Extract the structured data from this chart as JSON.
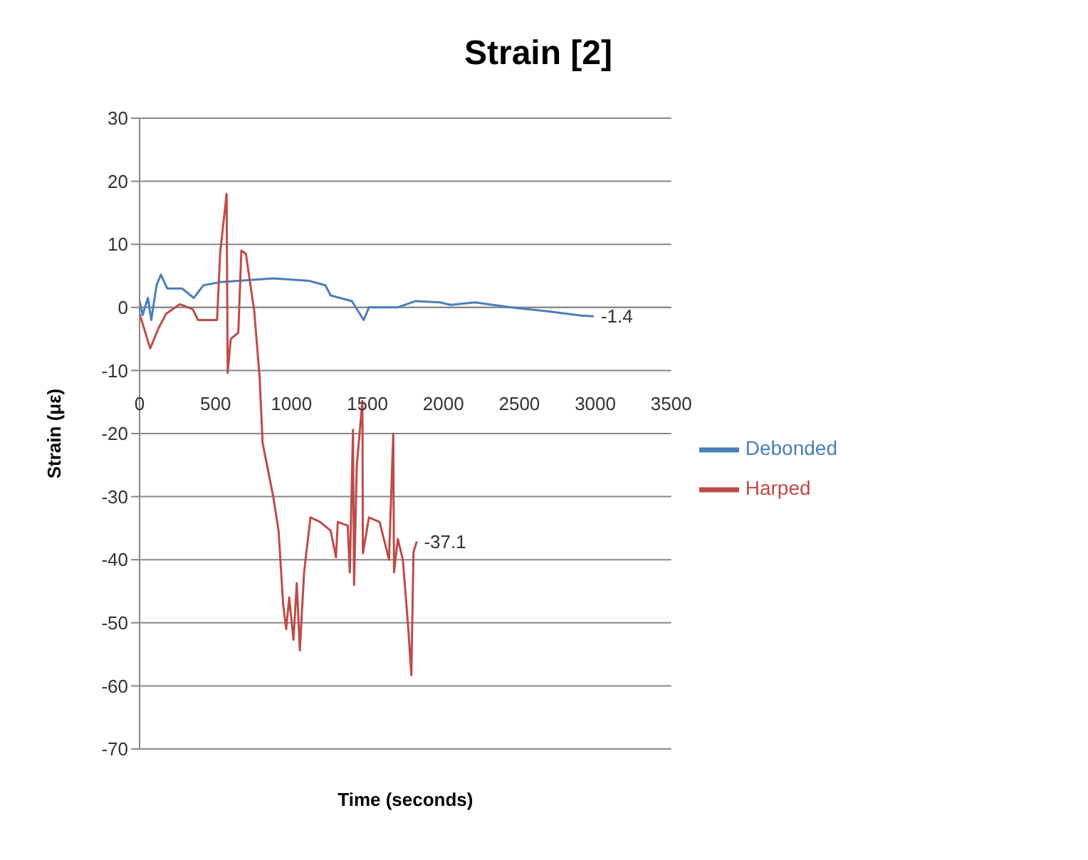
{
  "chart_data": {
    "type": "line",
    "title": "Strain [2]",
    "xlabel": "Time (seconds)",
    "ylabel": "Strain (με)",
    "xlim": [
      0,
      3500
    ],
    "xticks": [
      0,
      500,
      1000,
      1500,
      2000,
      2500,
      3000,
      3500
    ],
    "ylim": [
      -70,
      30
    ],
    "yticks": [
      -70,
      -60,
      -50,
      -40,
      -30,
      -20,
      -10,
      0,
      10,
      20,
      30
    ],
    "grid": "y",
    "legend": "right",
    "marker": "none",
    "line_style": "solid",
    "annotations": [
      {
        "text": "-1.4",
        "x": 2990,
        "y": -1.4
      },
      {
        "text": "-37.1",
        "x": 1825,
        "y": -37.1
      }
    ],
    "series": [
      {
        "name": "Debonded",
        "color": "#4a7ebb",
        "x": [
          0,
          20,
          55,
          77,
          112,
          140,
          182,
          280,
          357,
          420,
          530,
          650,
          880,
          1118,
          1223,
          1258,
          1398,
          1475,
          1510,
          1698,
          1817,
          1978,
          2048,
          2208,
          2446,
          2676,
          2907,
          2990
        ],
        "values": [
          1,
          -1.2,
          1.5,
          -2,
          3.5,
          5.2,
          3,
          3,
          1.5,
          3.5,
          4,
          4.2,
          4.6,
          4.2,
          3.5,
          1.9,
          1,
          -2,
          0,
          0,
          1,
          0.8,
          0.4,
          0.8,
          0,
          -0.6,
          -1.3,
          -1.4
        ]
      },
      {
        "name": "Harped",
        "color": "#be4b48",
        "x": [
          0,
          70,
          125,
          175,
          265,
          350,
          385,
          510,
          531,
          573,
          580,
          600,
          650,
          670,
          700,
          755,
          790,
          810,
          880,
          915,
          945,
          965,
          985,
          1013,
          1035,
          1055,
          1083,
          1125,
          1188,
          1258,
          1293,
          1305,
          1370,
          1384,
          1405,
          1412,
          1430,
          1467,
          1470,
          1510,
          1580,
          1642,
          1670,
          1675,
          1700,
          1733,
          1768,
          1789,
          1803,
          1825
        ],
        "values": [
          -1,
          -6.5,
          -3.3,
          -1,
          0.5,
          -0.3,
          -2,
          -2,
          8.75,
          18,
          -10.4,
          -5,
          -4,
          9,
          8.5,
          -0.6,
          -11,
          -21.5,
          -30,
          -35.4,
          -47,
          -51,
          -46,
          -52.7,
          -43.7,
          -54.4,
          -42,
          -33.3,
          -34,
          -35.4,
          -39.6,
          -34,
          -34.6,
          -42,
          -19.4,
          -44,
          -25,
          -14.8,
          -39,
          -33.3,
          -34,
          -40,
          -20,
          -42,
          -36.7,
          -40,
          -50.6,
          -58.3,
          -38.8,
          -37.1
        ]
      }
    ]
  }
}
